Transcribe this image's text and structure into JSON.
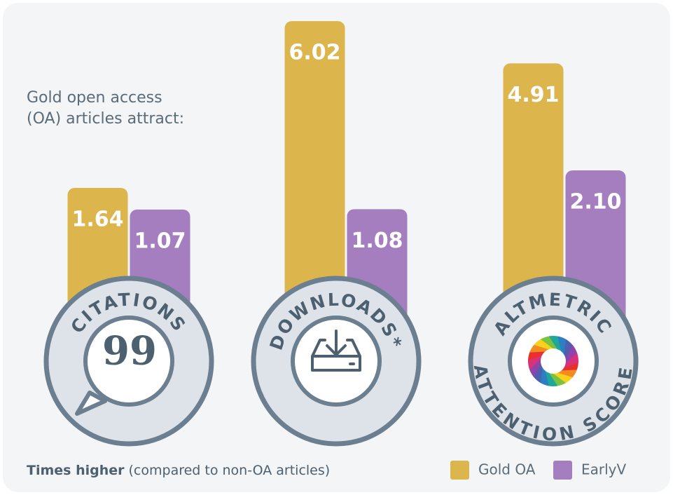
{
  "chart_data": {
    "type": "bar",
    "subtitle": [
      "Gold open access",
      "(OA) articles attract:"
    ],
    "categories": [
      [
        "CITATIONS"
      ],
      [
        "DOWNLOADS*"
      ],
      [
        "ALTMETRIC",
        "ATTENTION SCORE"
      ]
    ],
    "series": [
      {
        "name": "Gold OA",
        "color": "#dcb54c",
        "values": [
          1.64,
          6.02,
          4.91
        ],
        "value_labels": [
          "1.64",
          "6.02",
          "4.91"
        ]
      },
      {
        "name": "EarlyV",
        "color": "#a47ebf",
        "values": [
          1.07,
          1.08,
          2.1
        ],
        "value_labels": [
          "1.07",
          "1.08",
          "2.10"
        ]
      }
    ],
    "footnote": {
      "bold": "Times higher",
      "text": "(compared to non-OA articles)"
    }
  }
}
